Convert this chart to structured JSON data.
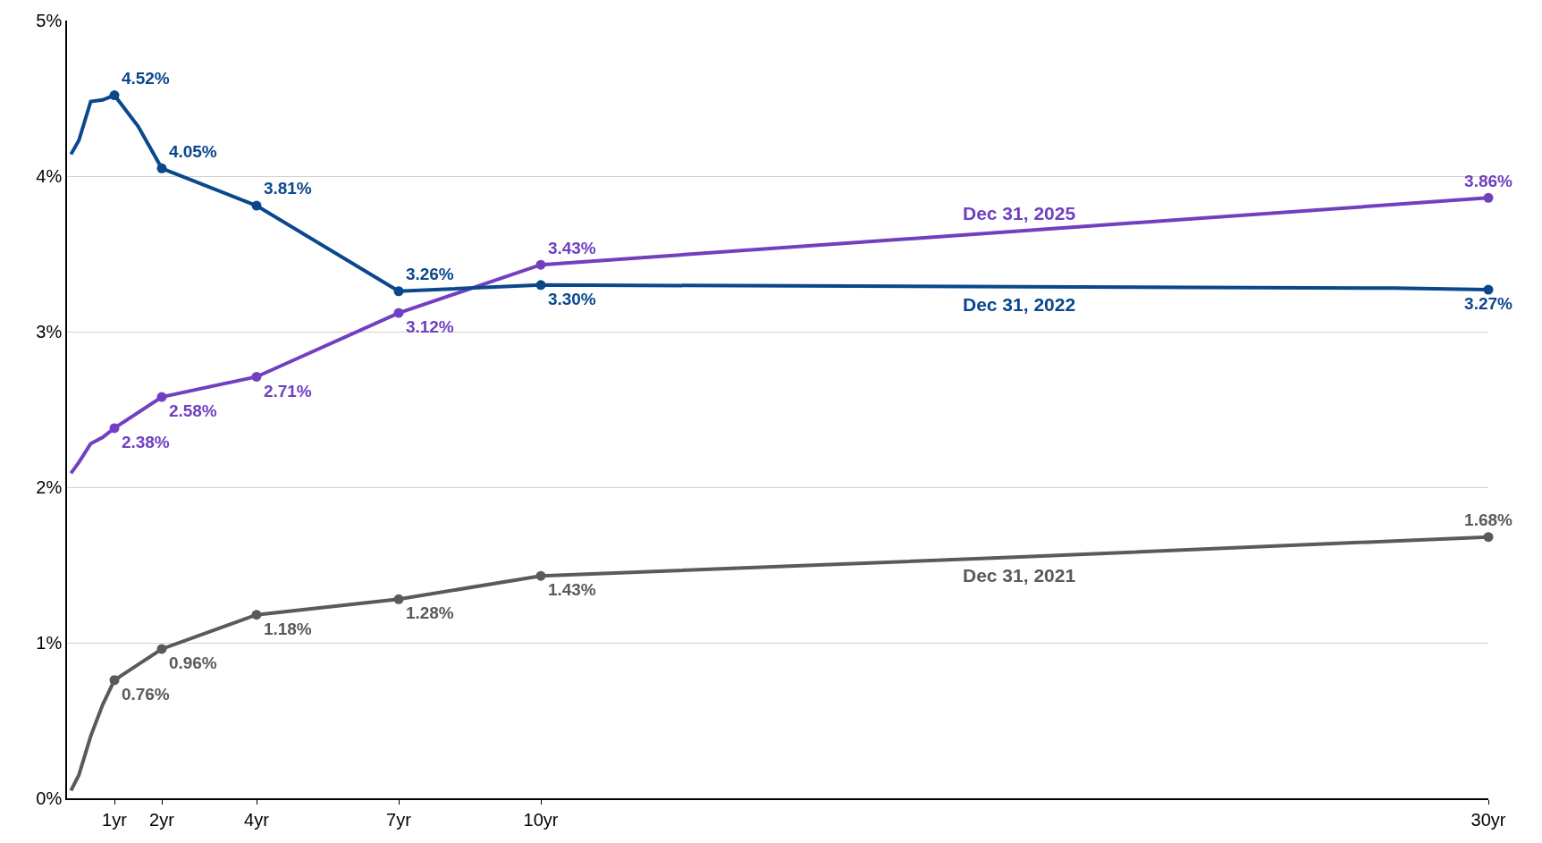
{
  "chart_data": {
    "type": "line",
    "xlim": [
      0,
      30
    ],
    "ylim": [
      0,
      5
    ],
    "xticks": [
      {
        "value": 1,
        "label": "1yr"
      },
      {
        "value": 2,
        "label": "2yr"
      },
      {
        "value": 4,
        "label": "4yr"
      },
      {
        "value": 7,
        "label": "7yr"
      },
      {
        "value": 10,
        "label": "10yr"
      },
      {
        "value": 30,
        "label": "30yr"
      }
    ],
    "yticks": [
      {
        "value": 0,
        "label": "0%"
      },
      {
        "value": 1,
        "label": "1%"
      },
      {
        "value": 2,
        "label": "2%"
      },
      {
        "value": 3,
        "label": "3%"
      },
      {
        "value": 4,
        "label": "4%"
      },
      {
        "value": 5,
        "label": "5%"
      }
    ],
    "grid": "y",
    "legend": false,
    "marker": "circle",
    "line_style": "solid",
    "series": [
      {
        "name": "Dec 31, 2025",
        "color": "#7040c0",
        "x": [
          0.083,
          0.25,
          0.5,
          0.75,
          1,
          2,
          4,
          7,
          10,
          30
        ],
        "values": [
          2.09,
          2.16,
          2.28,
          2.32,
          2.38,
          2.58,
          2.71,
          3.12,
          3.43,
          3.86
        ],
        "value_labels": [
          null,
          null,
          null,
          null,
          "2.38%",
          "2.58%",
          "2.71%",
          "3.12%",
          "3.43%",
          "3.86%"
        ]
      },
      {
        "name": "Dec 31, 2022",
        "color": "#0a478c",
        "x": [
          0.083,
          0.25,
          0.5,
          0.75,
          1,
          1.5,
          2,
          4,
          7,
          10,
          28,
          30
        ],
        "values": [
          4.14,
          4.23,
          4.48,
          4.49,
          4.52,
          4.32,
          4.05,
          3.81,
          3.26,
          3.3,
          3.28,
          3.27
        ],
        "value_labels": [
          null,
          null,
          null,
          null,
          "4.52%",
          null,
          "4.05%",
          "3.81%",
          "3.26%",
          "3.30%",
          null,
          "3.27%"
        ]
      },
      {
        "name": "Dec 31, 2021",
        "color": "#5a5a5a",
        "x": [
          0.083,
          0.25,
          0.5,
          0.75,
          1,
          1.5,
          2,
          4,
          7,
          10,
          20,
          30
        ],
        "values": [
          0.05,
          0.15,
          0.4,
          0.6,
          0.76,
          0.86,
          0.96,
          1.18,
          1.28,
          1.43,
          1.55,
          1.68
        ],
        "value_labels": [
          null,
          null,
          null,
          null,
          "0.76%",
          null,
          "0.96%",
          "1.18%",
          "1.28%",
          "1.43%",
          null,
          "1.68%"
        ]
      }
    ]
  }
}
